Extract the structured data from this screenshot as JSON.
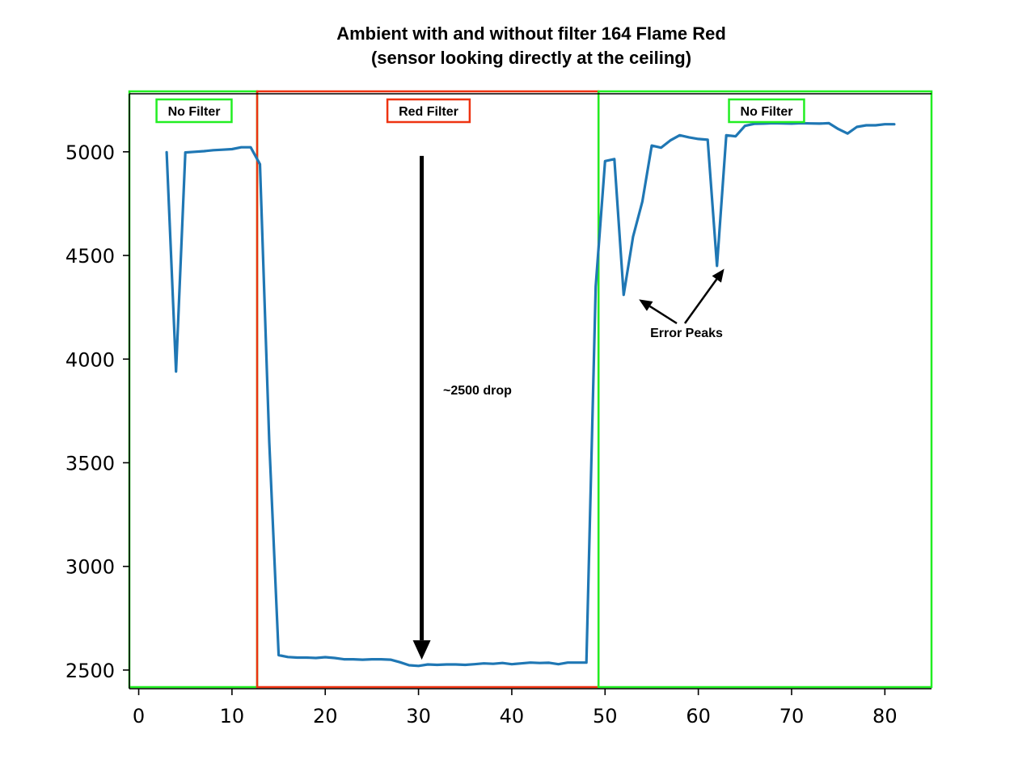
{
  "chart_data": {
    "type": "line",
    "title": "Ambient with and without filter 164 Flame Red",
    "subtitle": "(sensor looking directly at the ceiling)",
    "xlabel": "",
    "ylabel": "",
    "xlim": [
      -1,
      85
    ],
    "ylim": [
      2410,
      5280
    ],
    "xticks": [
      0,
      10,
      20,
      30,
      40,
      50,
      60,
      70,
      80
    ],
    "yticks": [
      2500,
      3000,
      3500,
      4000,
      4500,
      5000
    ],
    "grid": false,
    "series_color": "#1f77b4",
    "series": [
      {
        "x": [
          3,
          4,
          5,
          6,
          7,
          8,
          9,
          10,
          11,
          12,
          13,
          14,
          15,
          16,
          17,
          18,
          19,
          20,
          21,
          22,
          23,
          24,
          25,
          26,
          27,
          28,
          29,
          30,
          31,
          32,
          33,
          34,
          35,
          36,
          37,
          38,
          39,
          40,
          41,
          42,
          43,
          44,
          45,
          46,
          47,
          48,
          49,
          50,
          51,
          52,
          53,
          54,
          55,
          56,
          57,
          58,
          59,
          60,
          61,
          62,
          63,
          64,
          65,
          66,
          67,
          68,
          69,
          70,
          71,
          72,
          73,
          74,
          75,
          76,
          77,
          78,
          79,
          80,
          81
        ],
        "y": [
          4998,
          3940,
          4997,
          5000,
          5003,
          5008,
          5010,
          5013,
          5022,
          5022,
          4940,
          3600,
          2572,
          2563,
          2560,
          2560,
          2558,
          2562,
          2558,
          2552,
          2552,
          2550,
          2552,
          2552,
          2550,
          2538,
          2523,
          2520,
          2527,
          2525,
          2527,
          2527,
          2525,
          2528,
          2532,
          2530,
          2534,
          2528,
          2532,
          2536,
          2534,
          2535,
          2528,
          2536,
          2536,
          2536,
          4350,
          4955,
          4965,
          4310,
          4590,
          4760,
          5030,
          5020,
          5055,
          5080,
          5070,
          5062,
          5058,
          4450,
          5080,
          5075,
          5125,
          5135,
          5136,
          5138,
          5137,
          5136,
          5138,
          5137,
          5136,
          5138,
          5110,
          5088,
          5120,
          5128,
          5128,
          5133,
          5133
        ]
      }
    ],
    "regions": [
      {
        "label": "No Filter",
        "color": "#22ee22",
        "x_range": [
          -1,
          12.7
        ]
      },
      {
        "label": "Red Filter",
        "color": "#ee3311",
        "x_range": [
          12.7,
          49.3
        ]
      },
      {
        "label": "No Filter",
        "color": "#22ee22",
        "x_range": [
          49.3,
          85
        ]
      }
    ],
    "annotations": [
      {
        "text": "~2500 drop",
        "arrow_from": [
          30,
          4980
        ],
        "arrow_to": [
          30,
          2550
        ]
      },
      {
        "text": "Error Peaks",
        "arrow_targets": [
          [
            53.2,
            4300
          ],
          [
            62.6,
            4420
          ]
        ]
      }
    ]
  }
}
